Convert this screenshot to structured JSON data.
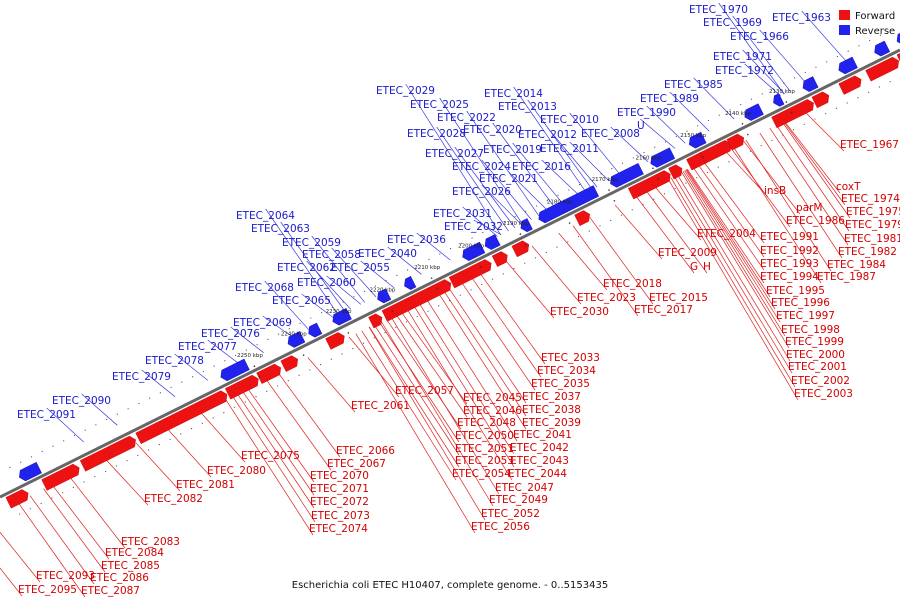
{
  "caption": "Escherichia coli ETEC H10407, complete genome. - 0..5153435",
  "legend": {
    "forward": "Forward",
    "reverse": "Reverse"
  },
  "colors": {
    "forward": "#ee1111",
    "reverse": "#2222ee",
    "forward_label": "#d40000",
    "reverse_label": "#1a1acc",
    "axis": "#888888"
  },
  "ticks": [
    "2130 kbp",
    "2140 kbp",
    "2150 kbp",
    "2160 kbp",
    "2170 kbp",
    "2180 kbp",
    "2190 kbp",
    "2200 kbp",
    "2210 kbp",
    "2220 kbp",
    "2230 kbp",
    "2240 kbp",
    "2250 kbp"
  ],
  "forward_genes": [
    "ETEC_1967",
    "coxT",
    "ETEC_1974",
    "ETEC_1975",
    "ETEC_1979",
    "insB",
    "parM",
    "ETEC_1981",
    "ETEC_1986",
    "ETEC_1982",
    "ETEC_1991",
    "ETEC_1984",
    "ETEC_1992",
    "ETEC_1987",
    "ETEC_2004",
    "ETEC_1993",
    "ETEC_1994",
    "ETEC_2009",
    "G",
    "H",
    "ETEC_1995",
    "ETEC_2018",
    "ETEC_1996",
    "ETEC_2015",
    "ETEC_2023",
    "ETEC_1997",
    "ETEC_2017",
    "ETEC_2030",
    "ETEC_1998",
    "ETEC_1999",
    "ETEC_2000",
    "ETEC_2033",
    "ETEC_2001",
    "ETEC_2034",
    "ETEC_2002",
    "ETEC_2035",
    "ETEC_2057",
    "ETEC_2003",
    "ETEC_2045",
    "ETEC_2037",
    "ETEC_2061",
    "ETEC_2046",
    "ETEC_2038",
    "ETEC_2048",
    "ETEC_2039",
    "ETEC_2050",
    "ETEC_2041",
    "ETEC_2066",
    "ETEC_2042",
    "ETEC_2067",
    "ETEC_2051",
    "ETEC_2075",
    "ETEC_2053",
    "ETEC_2043",
    "ETEC_2070",
    "ETEC_2054",
    "ETEC_2044",
    "ETEC_2080",
    "ETEC_2081",
    "ETEC_2071",
    "ETEC_2047",
    "ETEC_2049",
    "ETEC_2082",
    "ETEC_2072",
    "ETEC_2073",
    "ETEC_2052",
    "ETEC_2074",
    "ETEC_2056",
    "ETEC_2083",
    "ETEC_2084",
    "ETEC_2085",
    "ETEC_2086",
    "ETEC_2093",
    "ETEC_2087",
    "ETEC_2095"
  ],
  "reverse_genes": [
    "ETEC_1970",
    "ETEC_1969",
    "ETEC_1963",
    "ETEC_1966",
    "ETEC_1971",
    "ETEC_1972",
    "ETEC_1985",
    "ETEC_2029",
    "ETEC_2014",
    "ETEC_1989",
    "ETEC_2025",
    "ETEC_2013",
    "ETEC_1990",
    "ETEC_2022",
    "ETEC_2010",
    "U",
    "ETEC_2028",
    "ETEC_2020",
    "ETEC_2012",
    "ETEC_2008",
    "ETEC_2011",
    "ETEC_2027",
    "ETEC_2019",
    "ETEC_2016",
    "ETEC_2024",
    "ETEC_2021",
    "ETEC_2026",
    "ETEC_2031",
    "ETEC_2064",
    "ETEC_2032",
    "ETEC_2063",
    "ETEC_2036",
    "ETEC_2059",
    "ETEC_2058",
    "ETEC_2040",
    "ETEC_2062",
    "ETEC_2055",
    "ETEC_2060",
    "ETEC_2068",
    "ETEC_2065",
    "ETEC_2069",
    "ETEC_2076",
    "ETEC_2077",
    "ETEC_2078",
    "ETEC_2079",
    "ETEC_2090",
    "ETEC_2091"
  ]
}
